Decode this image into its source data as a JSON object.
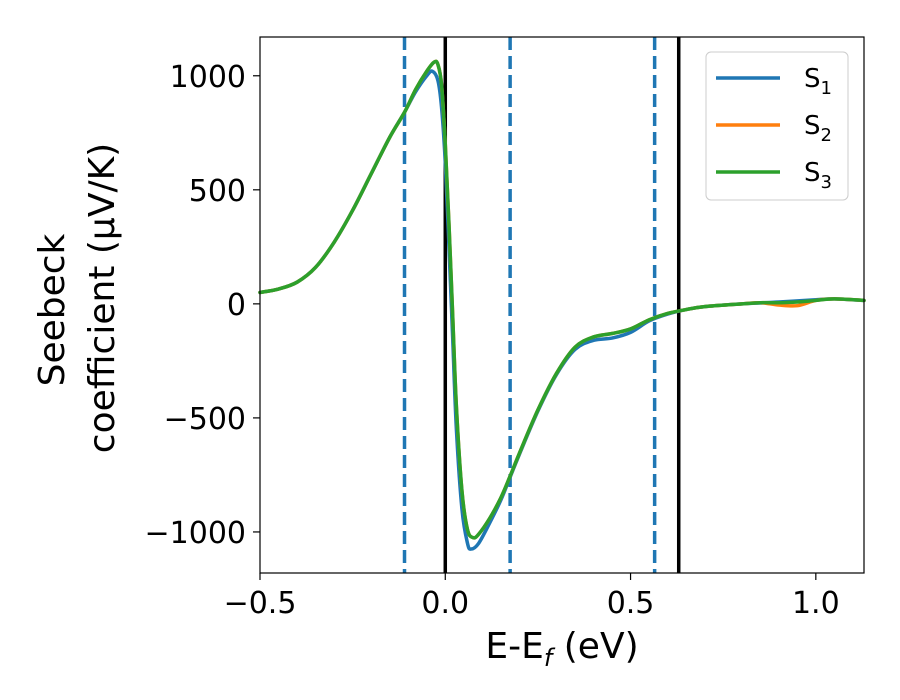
{
  "chart_data": {
    "type": "line",
    "xlabel": "E-E",
    "xlabel_sub": "f",
    "xlabel_unit": " (eV)",
    "ylabel_line1": "Seebeck",
    "ylabel_line2": "coefficient  (μV/K)",
    "xlim": [
      -0.5,
      1.13
    ],
    "ylim": [
      -1180,
      1170
    ],
    "x_ticks": [
      {
        "value": -0.5,
        "label": "−0.5"
      },
      {
        "value": 0.0,
        "label": "0.0"
      },
      {
        "value": 0.5,
        "label": "0.5"
      },
      {
        "value": 1.0,
        "label": "1.0"
      }
    ],
    "y_ticks": [
      {
        "value": 1000,
        "label": "1000"
      },
      {
        "value": 500,
        "label": "500"
      },
      {
        "value": 0,
        "label": "0"
      },
      {
        "value": -500,
        "label": "−500"
      },
      {
        "value": -1000,
        "label": "−1000"
      }
    ],
    "grid": false,
    "legend_position": "top-right",
    "vlines": [
      {
        "x": -0.11,
        "style": "dashed",
        "color": "#1f77b4"
      },
      {
        "x": 0.0,
        "style": "solid",
        "color": "#000000"
      },
      {
        "x": 0.175,
        "style": "dashed",
        "color": "#1f77b4"
      },
      {
        "x": 0.565,
        "style": "dashed",
        "color": "#1f77b4"
      },
      {
        "x": 0.63,
        "style": "solid",
        "color": "#000000"
      }
    ],
    "series": [
      {
        "name": "S",
        "sub": "1",
        "color": "#1f77b4",
        "points": [
          [
            -0.5,
            50
          ],
          [
            -0.45,
            65
          ],
          [
            -0.4,
            95
          ],
          [
            -0.35,
            160
          ],
          [
            -0.3,
            270
          ],
          [
            -0.25,
            410
          ],
          [
            -0.2,
            570
          ],
          [
            -0.15,
            730
          ],
          [
            -0.11,
            840
          ],
          [
            -0.08,
            930
          ],
          [
            -0.05,
            1000
          ],
          [
            -0.035,
            1020
          ],
          [
            -0.02,
            980
          ],
          [
            -0.01,
            860
          ],
          [
            0.0,
            620
          ],
          [
            0.01,
            250
          ],
          [
            0.02,
            -150
          ],
          [
            0.03,
            -550
          ],
          [
            0.045,
            -900
          ],
          [
            0.06,
            -1050
          ],
          [
            0.07,
            -1075
          ],
          [
            0.09,
            -1050
          ],
          [
            0.12,
            -960
          ],
          [
            0.15,
            -860
          ],
          [
            0.175,
            -760
          ],
          [
            0.2,
            -660
          ],
          [
            0.25,
            -470
          ],
          [
            0.3,
            -310
          ],
          [
            0.35,
            -200
          ],
          [
            0.4,
            -160
          ],
          [
            0.45,
            -150
          ],
          [
            0.5,
            -125
          ],
          [
            0.55,
            -75
          ],
          [
            0.6,
            -45
          ],
          [
            0.65,
            -25
          ],
          [
            0.7,
            -12
          ],
          [
            0.8,
            0
          ],
          [
            0.9,
            8
          ],
          [
            1.0,
            18
          ],
          [
            1.05,
            22
          ],
          [
            1.13,
            15
          ]
        ]
      },
      {
        "name": "S",
        "sub": "2",
        "color": "#ff7f0e",
        "points": [
          [
            -0.5,
            50
          ],
          [
            -0.45,
            65
          ],
          [
            -0.4,
            95
          ],
          [
            -0.35,
            160
          ],
          [
            -0.3,
            270
          ],
          [
            -0.25,
            410
          ],
          [
            -0.2,
            570
          ],
          [
            -0.15,
            730
          ],
          [
            -0.11,
            840
          ],
          [
            -0.08,
            940
          ],
          [
            -0.05,
            1020
          ],
          [
            -0.03,
            1060
          ],
          [
            -0.02,
            1050
          ],
          [
            -0.01,
            960
          ],
          [
            0.0,
            700
          ],
          [
            0.01,
            350
          ],
          [
            0.02,
            -50
          ],
          [
            0.03,
            -450
          ],
          [
            0.045,
            -820
          ],
          [
            0.06,
            -990
          ],
          [
            0.075,
            -1025
          ],
          [
            0.09,
            -1010
          ],
          [
            0.12,
            -940
          ],
          [
            0.15,
            -850
          ],
          [
            0.175,
            -755
          ],
          [
            0.2,
            -655
          ],
          [
            0.25,
            -465
          ],
          [
            0.3,
            -305
          ],
          [
            0.35,
            -190
          ],
          [
            0.4,
            -145
          ],
          [
            0.45,
            -130
          ],
          [
            0.5,
            -110
          ],
          [
            0.55,
            -70
          ],
          [
            0.6,
            -42
          ],
          [
            0.65,
            -25
          ],
          [
            0.7,
            -12
          ],
          [
            0.8,
            0
          ],
          [
            0.85,
            5
          ],
          [
            0.9,
            -5
          ],
          [
            0.95,
            -8
          ],
          [
            1.0,
            15
          ],
          [
            1.05,
            22
          ],
          [
            1.13,
            15
          ]
        ]
      },
      {
        "name": "S",
        "sub": "3",
        "color": "#2ca02c",
        "points": [
          [
            -0.5,
            50
          ],
          [
            -0.45,
            65
          ],
          [
            -0.4,
            95
          ],
          [
            -0.35,
            160
          ],
          [
            -0.3,
            270
          ],
          [
            -0.25,
            410
          ],
          [
            -0.2,
            570
          ],
          [
            -0.15,
            730
          ],
          [
            -0.11,
            840
          ],
          [
            -0.08,
            940
          ],
          [
            -0.05,
            1020
          ],
          [
            -0.03,
            1060
          ],
          [
            -0.02,
            1050
          ],
          [
            -0.01,
            960
          ],
          [
            0.0,
            700
          ],
          [
            0.01,
            350
          ],
          [
            0.02,
            -50
          ],
          [
            0.03,
            -450
          ],
          [
            0.045,
            -820
          ],
          [
            0.06,
            -990
          ],
          [
            0.075,
            -1025
          ],
          [
            0.09,
            -1010
          ],
          [
            0.12,
            -940
          ],
          [
            0.15,
            -850
          ],
          [
            0.175,
            -755
          ],
          [
            0.2,
            -655
          ],
          [
            0.25,
            -465
          ],
          [
            0.3,
            -305
          ],
          [
            0.35,
            -190
          ],
          [
            0.4,
            -145
          ],
          [
            0.45,
            -130
          ],
          [
            0.5,
            -110
          ],
          [
            0.55,
            -70
          ],
          [
            0.6,
            -42
          ],
          [
            0.65,
            -25
          ],
          [
            0.7,
            -12
          ],
          [
            0.8,
            0
          ],
          [
            0.85,
            5
          ],
          [
            0.9,
            5
          ],
          [
            0.95,
            8
          ],
          [
            1.0,
            15
          ],
          [
            1.05,
            22
          ],
          [
            1.13,
            15
          ]
        ]
      }
    ]
  }
}
